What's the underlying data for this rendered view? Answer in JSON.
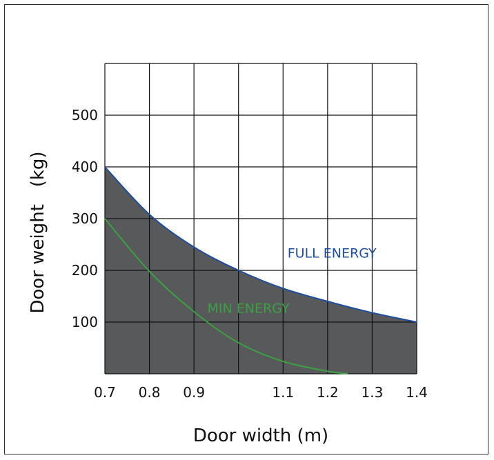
{
  "chart_data": {
    "type": "area",
    "title": "",
    "xlabel": "Door width (m)",
    "ylabel": "Door weight   (kg)",
    "xlim": [
      0.7,
      1.4
    ],
    "ylim": [
      0,
      600
    ],
    "grid": true,
    "x_tick_values": [
      0.7,
      0.8,
      0.9,
      1.0,
      1.1,
      1.2,
      1.3,
      1.4
    ],
    "x_tick_labels": [
      "0.7",
      "0.8",
      "0.9",
      "",
      "1.1",
      "1.2",
      "1.3",
      "1.4"
    ],
    "y_ticks": [
      100,
      200,
      300,
      400,
      500
    ],
    "y_tick_labels": [
      "100",
      "200",
      "300",
      "400",
      "500"
    ],
    "series": [
      {
        "name": "FULL ENERGY",
        "color": "#1f4e9e",
        "fill": "#58595b",
        "x": [
          0.7,
          0.8,
          0.9,
          1.0,
          1.1,
          1.2,
          1.3,
          1.4
        ],
        "y": [
          400,
          308,
          245,
          200,
          165,
          140,
          118,
          100
        ]
      },
      {
        "name": "MIN ENERGY",
        "color": "#3aa142",
        "x": [
          0.7,
          0.8,
          0.9,
          1.0,
          1.1,
          1.2,
          1.245
        ],
        "y": [
          300,
          198,
          120,
          60,
          24,
          5,
          0
        ]
      }
    ],
    "annotations": [
      {
        "text": "FULL ENERGY",
        "series": 0,
        "x": 1.11,
        "y": 225
      },
      {
        "text": "MIN ENERGY",
        "series": 1,
        "x": 0.93,
        "y": 118
      }
    ]
  }
}
